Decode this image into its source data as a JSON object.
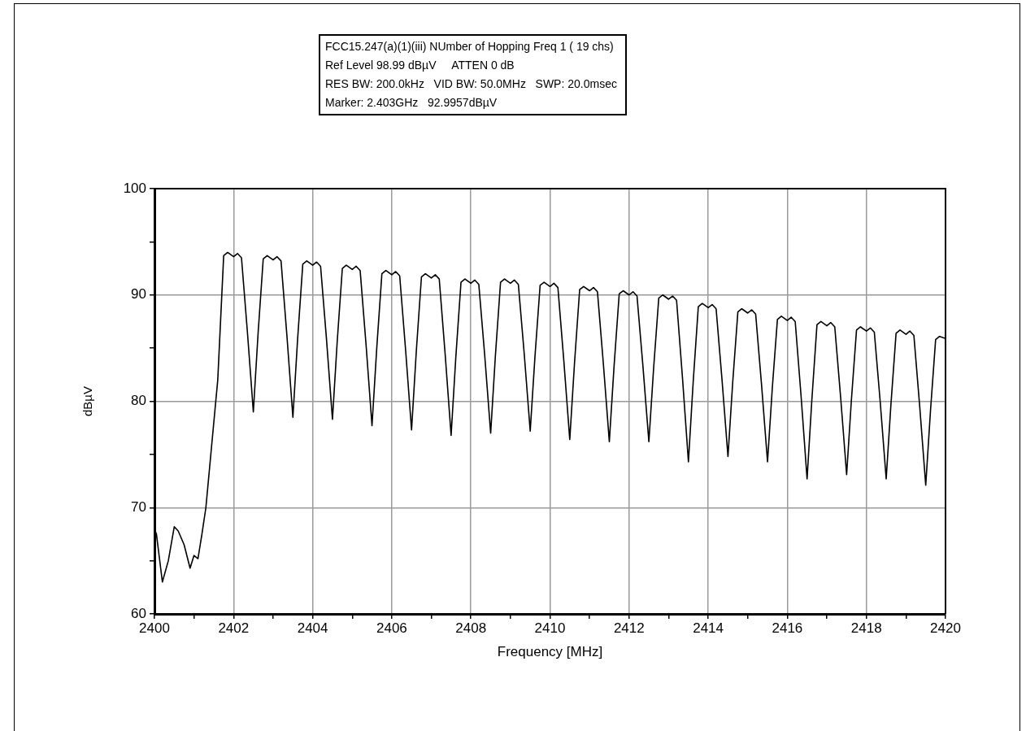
{
  "chart_data": {
    "type": "line",
    "xlabel": "Frequency [MHz]",
    "ylabel": "dBµV",
    "annotations": [
      "FCC15.247(a)(1)(iii) NUmber of Hopping Freq 1 ( 19 chs)",
      "Ref Level 98.99 dBµV     ATTEN 0 dB",
      "RES BW: 200.0kHz   VID BW: 50.0MHz   SWP: 20.0msec",
      "Marker: 2.403GHz   92.9957dBµV"
    ],
    "xlim": [
      2400,
      2420
    ],
    "xticks": [
      2400,
      {
        "value": 2401,
        "label": null
      },
      2402,
      {
        "value": 2403,
        "label": null
      },
      2404,
      {
        "value": 2405,
        "label": null
      },
      2406,
      {
        "value": 2407,
        "label": null
      },
      2408,
      {
        "value": 2409,
        "label": null
      },
      2410,
      {
        "value": 2411,
        "label": null
      },
      2412,
      {
        "value": 2413,
        "label": null
      },
      2414,
      {
        "value": 2415,
        "label": null
      },
      2416,
      {
        "value": 2417,
        "label": null
      },
      2418,
      {
        "value": 2419,
        "label": null
      },
      2420
    ],
    "ylim": [
      60,
      100
    ],
    "yticks": [
      60,
      {
        "value": 65,
        "label": null
      },
      70,
      {
        "value": 75,
        "label": null
      },
      80,
      {
        "value": 85,
        "label": null
      },
      90,
      {
        "value": 95,
        "label": null
      },
      100
    ],
    "grid": true,
    "marker": "none",
    "line_style": "solid",
    "series": [
      {
        "color": "#000000",
        "x": [
          2400,
          2400.05,
          2400.2,
          2400.35,
          2400.5,
          2400.6,
          2400.75,
          2400.9,
          2401,
          2401.1,
          2401.2,
          2401.3,
          2401.45,
          2401.6,
          2401.75,
          2401.85,
          2402,
          2402.1,
          2402.2,
          2402.35,
          2402.5,
          2402.62,
          2402.75,
          2402.85,
          2403,
          2403.1,
          2403.2,
          2403.35,
          2403.5,
          2403.62,
          2403.75,
          2403.85,
          2404,
          2404.1,
          2404.2,
          2404.35,
          2404.5,
          2404.62,
          2404.75,
          2404.85,
          2405,
          2405.1,
          2405.2,
          2405.35,
          2405.5,
          2405.62,
          2405.75,
          2405.85,
          2406,
          2406.1,
          2406.2,
          2406.35,
          2406.5,
          2406.62,
          2406.75,
          2406.85,
          2407,
          2407.1,
          2407.2,
          2407.35,
          2407.5,
          2407.62,
          2407.75,
          2407.85,
          2408,
          2408.1,
          2408.2,
          2408.35,
          2408.5,
          2408.62,
          2408.75,
          2408.85,
          2409,
          2409.1,
          2409.2,
          2409.35,
          2409.5,
          2409.62,
          2409.75,
          2409.85,
          2410,
          2410.1,
          2410.2,
          2410.35,
          2410.5,
          2410.62,
          2410.75,
          2410.85,
          2411,
          2411.1,
          2411.2,
          2411.35,
          2411.5,
          2411.62,
          2411.75,
          2411.85,
          2412,
          2412.1,
          2412.2,
          2412.35,
          2412.5,
          2412.62,
          2412.75,
          2412.85,
          2413,
          2413.1,
          2413.2,
          2413.35,
          2413.5,
          2413.62,
          2413.75,
          2413.85,
          2414,
          2414.1,
          2414.2,
          2414.35,
          2414.5,
          2414.62,
          2414.75,
          2414.85,
          2415,
          2415.1,
          2415.2,
          2415.35,
          2415.5,
          2415.62,
          2415.75,
          2415.85,
          2416,
          2416.1,
          2416.2,
          2416.35,
          2416.5,
          2416.62,
          2416.75,
          2416.85,
          2417,
          2417.1,
          2417.2,
          2417.35,
          2417.5,
          2417.62,
          2417.75,
          2417.85,
          2418,
          2418.1,
          2418.2,
          2418.35,
          2418.5,
          2418.62,
          2418.75,
          2418.85,
          2419,
          2419.1,
          2419.2,
          2419.35,
          2419.5,
          2419.62,
          2419.75,
          2419.85,
          2420
        ],
        "values": [
          68,
          67.5,
          63,
          65,
          68.2,
          67.8,
          66.5,
          64.3,
          65.5,
          65.2,
          67.5,
          70,
          76,
          82,
          93.7,
          94,
          93.6,
          93.9,
          93.5,
          86.5,
          79,
          86.4,
          93.4,
          93.7,
          93.3,
          93.6,
          93.2,
          86.1,
          78.5,
          85.9,
          92.9,
          93.2,
          92.8,
          93.1,
          92.7,
          85.8,
          78.3,
          85.6,
          92.5,
          92.8,
          92.4,
          92.7,
          92.3,
          85.3,
          77.7,
          85,
          92,
          92.3,
          91.9,
          92.2,
          91.8,
          84.8,
          77.3,
          84.7,
          91.7,
          92,
          91.6,
          91.9,
          91.5,
          84.4,
          76.8,
          84.2,
          91.2,
          91.5,
          91.1,
          91.4,
          91,
          84.3,
          77,
          84.3,
          91.2,
          91.5,
          91.1,
          91.4,
          91,
          84.4,
          77.2,
          84.2,
          90.9,
          91.2,
          90.8,
          91.1,
          90.7,
          83.8,
          76.4,
          83.6,
          90.5,
          90.8,
          90.4,
          90.7,
          90.3,
          83.5,
          76.2,
          83.3,
          90.1,
          90.4,
          90,
          90.3,
          89.9,
          83.3,
          76.2,
          83.1,
          89.7,
          90,
          89.6,
          89.9,
          89.5,
          82.2,
          74.3,
          81.8,
          88.9,
          89.2,
          88.8,
          89.1,
          88.7,
          82,
          74.8,
          81.8,
          88.4,
          88.7,
          88.3,
          88.6,
          88.2,
          81.5,
          74.3,
          81.2,
          87.7,
          88,
          87.6,
          87.9,
          87.5,
          80.4,
          72.7,
          80.1,
          87.2,
          87.5,
          87.1,
          87.4,
          87,
          80.3,
          73.1,
          80.1,
          86.7,
          87,
          86.6,
          86.9,
          86.5,
          79.9,
          72.7,
          79.7,
          86.4,
          86.7,
          86.3,
          86.6,
          86.2,
          79.4,
          72.1,
          79.1,
          85.8,
          86.1,
          85.9
        ]
      }
    ]
  }
}
